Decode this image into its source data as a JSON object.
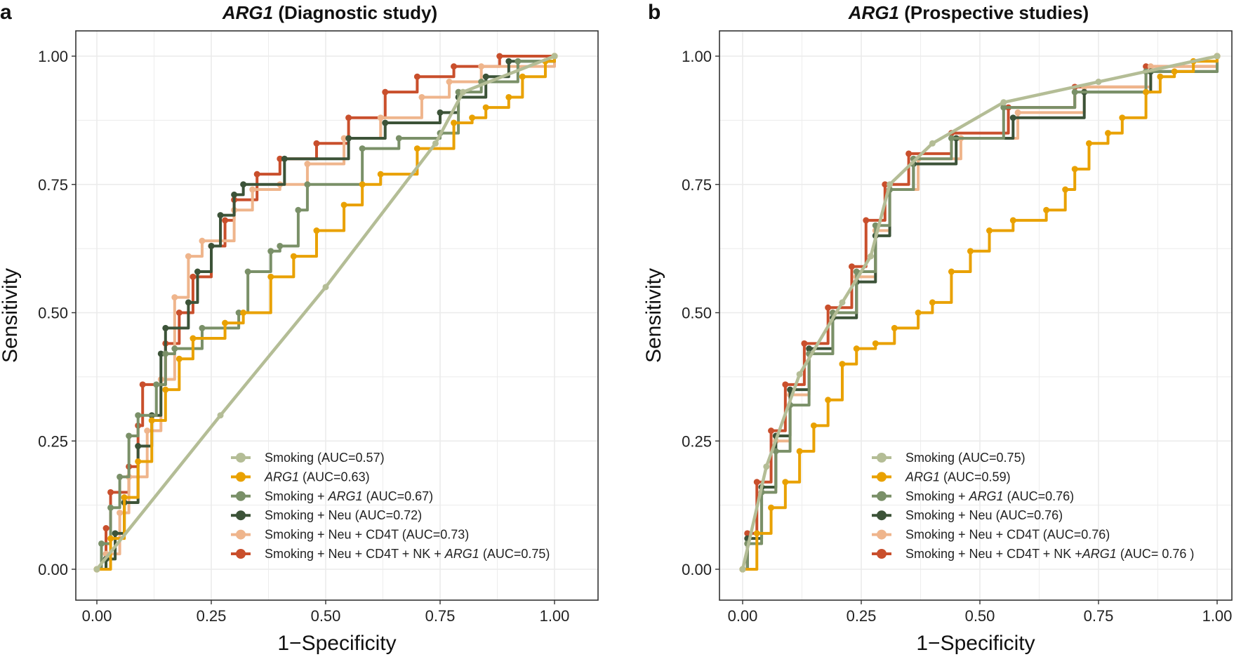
{
  "chart_data": [
    {
      "type": "line",
      "panel_label": "a",
      "title": {
        "italic": "ARG1",
        "rest": " (Diagnostic study)"
      },
      "xlabel": "1−Specificity",
      "ylabel": "Sensitivity",
      "xlim": [
        0,
        1
      ],
      "ylim": [
        0,
        1
      ],
      "xticks": [
        "0.00",
        "0.25",
        "0.50",
        "0.75",
        "1.00"
      ],
      "yticks": [
        "0.00",
        "0.25",
        "0.50",
        "0.75",
        "1.00"
      ],
      "grid": true,
      "legend_position": "bottom-right",
      "series": [
        {
          "name": "Smoking (AUC=0.57)",
          "legend": [
            {
              "t": "Smoking (AUC=0.57)",
              "i": false
            }
          ],
          "color": "#b4bd96",
          "points": [
            [
              0,
              0
            ],
            [
              0.27,
              0.3
            ],
            [
              0.5,
              0.55
            ],
            [
              0.74,
              0.83
            ],
            [
              0.8,
              0.93
            ],
            [
              1,
              1
            ]
          ]
        },
        {
          "name": "ARG1 (AUC=0.63)",
          "legend": [
            {
              "t": "ARG1",
              "i": true
            },
            {
              "t": " (AUC=0.63)",
              "i": false
            }
          ],
          "color": "#e9a100",
          "points": [
            [
              0,
              0
            ],
            [
              0.03,
              0.06
            ],
            [
              0.06,
              0.14
            ],
            [
              0.09,
              0.21
            ],
            [
              0.12,
              0.29
            ],
            [
              0.15,
              0.35
            ],
            [
              0.18,
              0.41
            ],
            [
              0.21,
              0.45
            ],
            [
              0.28,
              0.48
            ],
            [
              0.32,
              0.5
            ],
            [
              0.38,
              0.57
            ],
            [
              0.43,
              0.61
            ],
            [
              0.48,
              0.66
            ],
            [
              0.54,
              0.71
            ],
            [
              0.58,
              0.75
            ],
            [
              0.62,
              0.77
            ],
            [
              0.7,
              0.82
            ],
            [
              0.78,
              0.87
            ],
            [
              0.82,
              0.88
            ],
            [
              0.85,
              0.9
            ],
            [
              0.9,
              0.92
            ],
            [
              0.93,
              0.96
            ],
            [
              0.98,
              0.99
            ],
            [
              1,
              1
            ]
          ]
        },
        {
          "name": "Smoking + ARG1 (AUC=0.67)",
          "legend": [
            {
              "t": "Smoking + ",
              "i": false
            },
            {
              "t": "ARG1",
              "i": true
            },
            {
              "t": " (AUC=0.67)",
              "i": false
            }
          ],
          "color": "#7a9068",
          "points": [
            [
              0,
              0
            ],
            [
              0.01,
              0.05
            ],
            [
              0.03,
              0.12
            ],
            [
              0.05,
              0.18
            ],
            [
              0.07,
              0.26
            ],
            [
              0.09,
              0.3
            ],
            [
              0.13,
              0.36
            ],
            [
              0.15,
              0.42
            ],
            [
              0.17,
              0.43
            ],
            [
              0.23,
              0.47
            ],
            [
              0.31,
              0.5
            ],
            [
              0.33,
              0.58
            ],
            [
              0.38,
              0.62
            ],
            [
              0.4,
              0.63
            ],
            [
              0.44,
              0.7
            ],
            [
              0.46,
              0.75
            ],
            [
              0.58,
              0.82
            ],
            [
              0.66,
              0.84
            ],
            [
              0.75,
              0.85
            ],
            [
              0.79,
              0.93
            ],
            [
              0.84,
              0.95
            ],
            [
              0.92,
              0.99
            ],
            [
              1,
              1
            ]
          ]
        },
        {
          "name": "Smoking + Neu (AUC=0.72)",
          "legend": [
            {
              "t": "Smoking + Neu (AUC=0.72)",
              "i": false
            }
          ],
          "color": "#3c5338",
          "points": [
            [
              0,
              0
            ],
            [
              0.02,
              0.02
            ],
            [
              0.04,
              0.07
            ],
            [
              0.06,
              0.13
            ],
            [
              0.09,
              0.24
            ],
            [
              0.12,
              0.3
            ],
            [
              0.14,
              0.42
            ],
            [
              0.15,
              0.47
            ],
            [
              0.2,
              0.52
            ],
            [
              0.22,
              0.58
            ],
            [
              0.25,
              0.63
            ],
            [
              0.27,
              0.69
            ],
            [
              0.3,
              0.73
            ],
            [
              0.32,
              0.75
            ],
            [
              0.41,
              0.8
            ],
            [
              0.55,
              0.84
            ],
            [
              0.63,
              0.87
            ],
            [
              0.75,
              0.89
            ],
            [
              0.79,
              0.92
            ],
            [
              0.85,
              0.96
            ],
            [
              0.9,
              0.99
            ],
            [
              1,
              1
            ]
          ]
        },
        {
          "name": "Smoking + Neu + CD4T (AUC=0.73)",
          "legend": [
            {
              "t": "Smoking + Neu + CD4T (AUC=0.73)",
              "i": false
            }
          ],
          "color": "#efb58c",
          "points": [
            [
              0,
              0
            ],
            [
              0.02,
              0.03
            ],
            [
              0.05,
              0.11
            ],
            [
              0.07,
              0.18
            ],
            [
              0.11,
              0.27
            ],
            [
              0.14,
              0.37
            ],
            [
              0.17,
              0.53
            ],
            [
              0.2,
              0.61
            ],
            [
              0.23,
              0.64
            ],
            [
              0.3,
              0.7
            ],
            [
              0.34,
              0.74
            ],
            [
              0.4,
              0.75
            ],
            [
              0.46,
              0.79
            ],
            [
              0.54,
              0.84
            ],
            [
              0.62,
              0.88
            ],
            [
              0.71,
              0.92
            ],
            [
              0.77,
              0.95
            ],
            [
              0.84,
              0.98
            ],
            [
              1,
              1
            ]
          ]
        },
        {
          "name": "Smoking + Neu + CD4T + NK + ARG1 (AUC=0.75)",
          "legend": [
            {
              "t": "Smoking + Neu + CD4T + NK + ",
              "i": false
            },
            {
              "t": "ARG1",
              "i": true
            },
            {
              "t": " (AUC=0.75)",
              "i": false
            }
          ],
          "color": "#c94f2c",
          "points": [
            [
              0,
              0
            ],
            [
              0.02,
              0.08
            ],
            [
              0.03,
              0.15
            ],
            [
              0.07,
              0.2
            ],
            [
              0.09,
              0.28
            ],
            [
              0.1,
              0.36
            ],
            [
              0.15,
              0.44
            ],
            [
              0.18,
              0.5
            ],
            [
              0.21,
              0.57
            ],
            [
              0.25,
              0.63
            ],
            [
              0.28,
              0.68
            ],
            [
              0.3,
              0.72
            ],
            [
              0.35,
              0.77
            ],
            [
              0.4,
              0.8
            ],
            [
              0.48,
              0.83
            ],
            [
              0.55,
              0.88
            ],
            [
              0.63,
              0.93
            ],
            [
              0.7,
              0.96
            ],
            [
              0.78,
              0.98
            ],
            [
              0.88,
              1.0
            ],
            [
              1,
              1
            ]
          ]
        }
      ]
    },
    {
      "type": "line",
      "panel_label": "b",
      "title": {
        "italic": "ARG1",
        "rest": " (Prospective studies)"
      },
      "xlabel": "1−Specificity",
      "ylabel": "Sensitivity",
      "xlim": [
        0,
        1
      ],
      "ylim": [
        0,
        1
      ],
      "xticks": [
        "0.00",
        "0.25",
        "0.50",
        "0.75",
        "1.00"
      ],
      "yticks": [
        "0.00",
        "0.25",
        "0.50",
        "0.75",
        "1.00"
      ],
      "grid": true,
      "legend_position": "bottom-right",
      "series": [
        {
          "name": "Smoking (AUC=0.75)",
          "legend": [
            {
              "t": "Smoking (AUC=0.75)",
              "i": false
            }
          ],
          "color": "#b4bd96",
          "points": [
            [
              0,
              0
            ],
            [
              0.05,
              0.2
            ],
            [
              0.12,
              0.38
            ],
            [
              0.21,
              0.52
            ],
            [
              0.27,
              0.61
            ],
            [
              0.31,
              0.75
            ],
            [
              0.4,
              0.83
            ],
            [
              0.55,
              0.91
            ],
            [
              0.75,
              0.95
            ],
            [
              1,
              1
            ]
          ]
        },
        {
          "name": "ARG1 (AUC=0.59)",
          "legend": [
            {
              "t": "ARG1",
              "i": true
            },
            {
              "t": " (AUC=0.59)",
              "i": false
            }
          ],
          "color": "#e9a100",
          "points": [
            [
              0,
              0
            ],
            [
              0.03,
              0.07
            ],
            [
              0.06,
              0.12
            ],
            [
              0.09,
              0.17
            ],
            [
              0.12,
              0.23
            ],
            [
              0.15,
              0.28
            ],
            [
              0.18,
              0.33
            ],
            [
              0.21,
              0.4
            ],
            [
              0.24,
              0.43
            ],
            [
              0.28,
              0.44
            ],
            [
              0.32,
              0.47
            ],
            [
              0.37,
              0.5
            ],
            [
              0.4,
              0.52
            ],
            [
              0.44,
              0.58
            ],
            [
              0.48,
              0.62
            ],
            [
              0.52,
              0.66
            ],
            [
              0.57,
              0.68
            ],
            [
              0.64,
              0.7
            ],
            [
              0.68,
              0.74
            ],
            [
              0.7,
              0.78
            ],
            [
              0.73,
              0.83
            ],
            [
              0.77,
              0.85
            ],
            [
              0.8,
              0.88
            ],
            [
              0.85,
              0.93
            ],
            [
              0.88,
              0.96
            ],
            [
              0.91,
              0.97
            ],
            [
              0.95,
              0.99
            ],
            [
              1,
              1
            ]
          ]
        },
        {
          "name": "Smoking + ARG1 (AUC=0.76)",
          "legend": [
            {
              "t": "Smoking + ",
              "i": false
            },
            {
              "t": "ARG1",
              "i": true
            },
            {
              "t": " (AUC=0.76)",
              "i": false
            }
          ],
          "color": "#7a9068",
          "points": [
            [
              0,
              0
            ],
            [
              0.01,
              0.05
            ],
            [
              0.04,
              0.15
            ],
            [
              0.07,
              0.23
            ],
            [
              0.1,
              0.32
            ],
            [
              0.14,
              0.42
            ],
            [
              0.19,
              0.5
            ],
            [
              0.24,
              0.58
            ],
            [
              0.28,
              0.67
            ],
            [
              0.31,
              0.74
            ],
            [
              0.36,
              0.8
            ],
            [
              0.44,
              0.84
            ],
            [
              0.55,
              0.9
            ],
            [
              0.7,
              0.93
            ],
            [
              0.85,
              0.97
            ],
            [
              1,
              1
            ]
          ]
        },
        {
          "name": "Smoking + Neu (AUC=0.76)",
          "legend": [
            {
              "t": "Smoking + Neu (AUC=0.76)",
              "i": false
            }
          ],
          "color": "#3c5338",
          "points": [
            [
              0,
              0
            ],
            [
              0.01,
              0.06
            ],
            [
              0.04,
              0.16
            ],
            [
              0.07,
              0.26
            ],
            [
              0.1,
              0.35
            ],
            [
              0.14,
              0.43
            ],
            [
              0.19,
              0.49
            ],
            [
              0.24,
              0.56
            ],
            [
              0.28,
              0.65
            ],
            [
              0.31,
              0.74
            ],
            [
              0.36,
              0.79
            ],
            [
              0.45,
              0.84
            ],
            [
              0.57,
              0.88
            ],
            [
              0.72,
              0.93
            ],
            [
              0.86,
              0.97
            ],
            [
              1,
              1
            ]
          ]
        },
        {
          "name": "Smoking + Neu + CD4T (AUC=0.76)",
          "legend": [
            {
              "t": "Smoking + Neu + CD4T (AUC=0.76)",
              "i": false
            }
          ],
          "color": "#efb58c",
          "points": [
            [
              0,
              0
            ],
            [
              0.01,
              0.05
            ],
            [
              0.04,
              0.15
            ],
            [
              0.07,
              0.25
            ],
            [
              0.1,
              0.34
            ],
            [
              0.14,
              0.42
            ],
            [
              0.19,
              0.5
            ],
            [
              0.24,
              0.57
            ],
            [
              0.28,
              0.66
            ],
            [
              0.31,
              0.74
            ],
            [
              0.37,
              0.8
            ],
            [
              0.46,
              0.84
            ],
            [
              0.58,
              0.89
            ],
            [
              0.72,
              0.94
            ],
            [
              0.86,
              0.98
            ],
            [
              1,
              1
            ]
          ]
        },
        {
          "name": "Smoking + Neu + CD4T + NK +ARG1 (AUC= 0.76 )",
          "legend": [
            {
              "t": "Smoking + Neu + CD4T + NK +",
              "i": false
            },
            {
              "t": "ARG1",
              "i": true
            },
            {
              "t": "  (AUC= 0.76 )",
              "i": false
            }
          ],
          "color": "#c94f2c",
          "points": [
            [
              0,
              0
            ],
            [
              0.01,
              0.07
            ],
            [
              0.03,
              0.17
            ],
            [
              0.06,
              0.27
            ],
            [
              0.09,
              0.36
            ],
            [
              0.13,
              0.44
            ],
            [
              0.18,
              0.51
            ],
            [
              0.23,
              0.59
            ],
            [
              0.26,
              0.68
            ],
            [
              0.3,
              0.75
            ],
            [
              0.35,
              0.81
            ],
            [
              0.44,
              0.85
            ],
            [
              0.56,
              0.9
            ],
            [
              0.7,
              0.94
            ],
            [
              0.85,
              0.98
            ],
            [
              1,
              1
            ]
          ]
        }
      ]
    }
  ]
}
